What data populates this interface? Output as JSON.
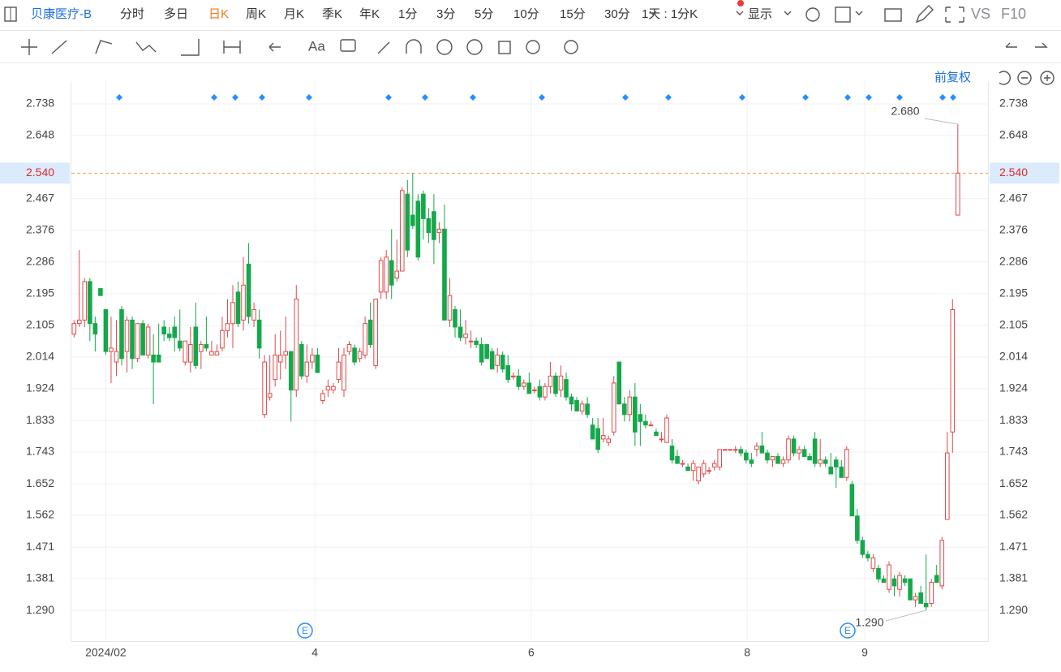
{
  "toolbar": {
    "stock": "贝康医疗-B",
    "periods": [
      "分时",
      "多日",
      "日K",
      "周K",
      "月K",
      "季K",
      "年K",
      "1分",
      "3分",
      "5分",
      "10分",
      "15分",
      "30分"
    ],
    "interval": "1天 : 1分K",
    "display": "显示",
    "vs": "VS",
    "f10": "F10",
    "font_tool": "Aa"
  },
  "chart_data": {
    "type": "candlestick",
    "adjust": "前复权",
    "up_color": "#e0494b",
    "down_color": "#14a84a",
    "grid": true,
    "ylim": [
      1.202,
      2.803
    ],
    "yticks": [
      2.738,
      2.648,
      2.467,
      2.376,
      2.286,
      2.195,
      2.105,
      2.014,
      1.924,
      1.833,
      1.743,
      1.652,
      1.562,
      1.471,
      1.381,
      {
        "value": 1.29,
        "label": "1.290"
      }
    ],
    "xlim": [
      -0.5,
      172.7
    ],
    "xticks": [
      {
        "value": 6,
        "label": "2024/02"
      },
      {
        "value": 45.5,
        "label": "4"
      },
      {
        "value": 86.4,
        "label": "6"
      },
      {
        "value": 127.2,
        "label": "8"
      },
      {
        "value": 149.4,
        "label": "9"
      }
    ],
    "last_price": {
      "value": 2.54,
      "label": "2.540"
    },
    "high_label": {
      "value": 2.68,
      "label": "2.680"
    },
    "low_label": {
      "value": 1.29,
      "label": "1.290"
    },
    "event_labels": [
      "E",
      "E"
    ],
    "ohlc": [
      [
        2.08,
        2.12,
        2.07,
        2.11
      ],
      [
        2.11,
        2.32,
        2.1,
        2.12
      ],
      [
        2.12,
        2.24,
        2.1,
        2.23
      ],
      [
        2.23,
        2.24,
        2.06,
        2.11
      ],
      [
        2.11,
        2.13,
        2.03,
        2.08
      ],
      [
        2.21,
        2.21,
        2.19,
        2.19
      ],
      [
        2.15,
        2.15,
        2.02,
        2.03
      ],
      [
        2.03,
        2.13,
        1.94,
        2.04
      ],
      [
        2.0,
        2.12,
        1.96,
        2.03
      ],
      [
        2.15,
        2.16,
        1.99,
        2.01
      ],
      [
        2.03,
        2.13,
        1.97,
        2.12
      ],
      [
        2.12,
        2.13,
        1.98,
        2.01
      ],
      [
        2.01,
        2.11,
        2.0,
        2.11
      ],
      [
        2.11,
        2.12,
        2.02,
        2.02
      ],
      [
        2.02,
        2.11,
        2.01,
        2.1
      ],
      [
        2.02,
        2.08,
        1.88,
        2.0
      ],
      [
        2.02,
        2.11,
        2.0,
        2.0
      ],
      [
        2.1,
        2.12,
        2.06,
        2.08
      ],
      [
        2.08,
        2.1,
        2.06,
        2.07
      ],
      [
        2.1,
        2.13,
        2.03,
        2.07
      ],
      [
        2.06,
        2.15,
        2.03,
        2.04
      ],
      [
        2.0,
        2.06,
        1.99,
        2.06
      ],
      [
        2.0,
        2.1,
        1.97,
        2.05
      ],
      [
        2.1,
        2.17,
        1.98,
        1.99
      ],
      [
        2.03,
        2.06,
        1.98,
        2.05
      ],
      [
        2.05,
        2.13,
        2.03,
        2.04
      ],
      [
        2.02,
        2.06,
        2.02,
        2.03
      ],
      [
        2.02,
        2.05,
        2.02,
        2.03
      ],
      [
        2.04,
        2.13,
        2.03,
        2.09
      ],
      [
        2.09,
        2.18,
        2.07,
        2.11
      ],
      [
        2.11,
        2.22,
        2.04,
        2.17
      ],
      [
        2.2,
        2.23,
        2.1,
        2.11
      ],
      [
        2.12,
        2.3,
        2.09,
        2.22
      ],
      [
        2.28,
        2.34,
        2.11,
        2.13
      ],
      [
        2.12,
        2.17,
        2.1,
        2.15
      ],
      [
        2.12,
        2.15,
        2.01,
        2.04
      ],
      [
        1.85,
        2.02,
        1.84,
        2.0
      ],
      [
        1.9,
        2.02,
        1.89,
        1.91
      ],
      [
        1.95,
        2.08,
        1.93,
        2.02
      ],
      [
        2.0,
        2.09,
        1.95,
        2.02
      ],
      [
        2.02,
        2.13,
        1.98,
        2.03
      ],
      [
        2.03,
        2.03,
        1.83,
        1.92
      ],
      [
        1.92,
        2.22,
        1.9,
        2.18
      ],
      [
        2.05,
        2.06,
        1.95,
        1.96
      ],
      [
        1.96,
        2.05,
        1.94,
        2.0
      ],
      [
        2.0,
        2.04,
        1.98,
        2.02
      ],
      [
        2.02,
        2.04,
        1.97,
        1.97
      ],
      [
        1.89,
        1.92,
        1.88,
        1.91
      ],
      [
        1.92,
        1.95,
        1.9,
        1.93
      ],
      [
        1.92,
        1.94,
        1.91,
        1.93
      ],
      [
        1.95,
        2.04,
        1.94,
        2.0
      ],
      [
        1.92,
        2.04,
        1.9,
        2.02
      ],
      [
        2.03,
        2.06,
        2.02,
        2.05
      ],
      [
        2.04,
        2.05,
        1.99,
        2.0
      ],
      [
        2.01,
        2.04,
        2.0,
        2.03
      ],
      [
        2.02,
        2.13,
        2.01,
        2.11
      ],
      [
        2.12,
        2.17,
        2.04,
        2.05
      ],
      [
        1.99,
        2.18,
        1.98,
        2.18
      ],
      [
        2.2,
        2.3,
        2.18,
        2.29
      ],
      [
        2.2,
        2.32,
        2.18,
        2.3
      ],
      [
        2.29,
        2.38,
        2.18,
        2.22
      ],
      [
        2.24,
        2.35,
        2.23,
        2.26
      ],
      [
        2.26,
        2.5,
        2.26,
        2.49
      ],
      [
        2.48,
        2.52,
        2.3,
        2.32
      ],
      [
        2.42,
        2.54,
        2.38,
        2.39
      ],
      [
        2.46,
        2.48,
        2.29,
        2.3
      ],
      [
        2.48,
        2.49,
        2.35,
        2.41
      ],
      [
        2.41,
        2.44,
        2.34,
        2.37
      ],
      [
        2.43,
        2.48,
        2.28,
        2.35
      ],
      [
        2.37,
        2.4,
        2.34,
        2.38
      ],
      [
        2.38,
        2.45,
        2.12,
        2.12
      ],
      [
        2.12,
        2.24,
        2.1,
        2.19
      ],
      [
        2.15,
        2.16,
        2.07,
        2.1
      ],
      [
        2.1,
        2.15,
        2.06,
        2.07
      ],
      [
        2.07,
        2.12,
        2.05,
        2.08
      ],
      [
        2.06,
        2.09,
        2.04,
        2.06
      ],
      [
        2.06,
        2.07,
        2.04,
        2.05
      ],
      [
        2.05,
        2.07,
        1.99,
        2.0
      ],
      [
        2.05,
        2.05,
        2.01,
        2.01
      ],
      [
        2.03,
        2.04,
        1.98,
        1.98
      ],
      [
        1.99,
        2.04,
        1.97,
        2.02
      ],
      [
        2.02,
        2.03,
        1.97,
        1.98
      ],
      [
        1.99,
        2.02,
        1.94,
        1.95
      ],
      [
        1.96,
        1.97,
        1.95,
        1.96
      ],
      [
        1.96,
        1.98,
        1.92,
        1.93
      ],
      [
        1.93,
        1.95,
        1.92,
        1.94
      ],
      [
        1.94,
        1.97,
        1.91,
        1.91
      ],
      [
        1.92,
        1.93,
        1.91,
        1.92
      ],
      [
        1.93,
        1.95,
        1.89,
        1.9
      ],
      [
        1.9,
        1.94,
        1.89,
        1.93
      ],
      [
        1.93,
        2.0,
        1.91,
        1.96
      ],
      [
        1.96,
        1.97,
        1.9,
        1.91
      ],
      [
        1.92,
        1.99,
        1.9,
        1.96
      ],
      [
        1.95,
        1.97,
        1.89,
        1.9
      ],
      [
        1.9,
        1.91,
        1.86,
        1.88
      ],
      [
        1.89,
        1.9,
        1.86,
        1.86
      ],
      [
        1.86,
        1.89,
        1.85,
        1.88
      ],
      [
        1.88,
        1.9,
        1.84,
        1.85
      ],
      [
        1.82,
        1.84,
        1.78,
        1.78
      ],
      [
        1.81,
        1.84,
        1.74,
        1.75
      ],
      [
        1.78,
        1.84,
        1.77,
        1.79
      ],
      [
        1.77,
        1.79,
        1.76,
        1.78
      ],
      [
        1.8,
        1.96,
        1.79,
        1.94
      ],
      [
        2.0,
        2.0,
        1.88,
        1.88
      ],
      [
        1.88,
        1.9,
        1.83,
        1.85
      ],
      [
        1.85,
        1.92,
        1.83,
        1.9
      ],
      [
        1.9,
        1.94,
        1.76,
        1.8
      ],
      [
        1.85,
        1.88,
        1.76,
        1.83
      ],
      [
        1.83,
        1.85,
        1.81,
        1.82
      ],
      [
        1.82,
        1.83,
        1.82,
        1.82
      ],
      [
        1.8,
        1.81,
        1.79,
        1.79
      ],
      [
        1.78,
        1.8,
        1.77,
        1.78
      ],
      [
        1.77,
        1.85,
        1.77,
        1.84
      ],
      [
        1.76,
        1.78,
        1.71,
        1.72
      ],
      [
        1.73,
        1.75,
        1.71,
        1.71
      ],
      [
        1.71,
        1.72,
        1.7,
        1.71
      ],
      [
        1.7,
        1.71,
        1.69,
        1.69
      ],
      [
        1.69,
        1.72,
        1.66,
        1.71
      ],
      [
        1.66,
        1.7,
        1.65,
        1.7
      ],
      [
        1.68,
        1.72,
        1.67,
        1.71
      ],
      [
        1.69,
        1.7,
        1.68,
        1.69
      ],
      [
        1.7,
        1.72,
        1.69,
        1.71
      ],
      [
        1.7,
        1.75,
        1.69,
        1.75
      ],
      [
        1.75,
        1.75,
        1.75,
        1.75
      ],
      [
        1.75,
        1.75,
        1.75,
        1.75
      ],
      [
        1.75,
        1.76,
        1.74,
        1.75
      ],
      [
        1.75,
        1.76,
        1.73,
        1.74
      ],
      [
        1.74,
        1.75,
        1.71,
        1.72
      ],
      [
        1.72,
        1.74,
        1.7,
        1.71
      ],
      [
        1.75,
        1.77,
        1.73,
        1.76
      ],
      [
        1.76,
        1.8,
        1.74,
        1.74
      ],
      [
        1.74,
        1.75,
        1.71,
        1.72
      ],
      [
        1.72,
        1.73,
        1.7,
        1.73
      ],
      [
        1.73,
        1.74,
        1.71,
        1.71
      ],
      [
        1.71,
        1.73,
        1.7,
        1.72
      ],
      [
        1.72,
        1.79,
        1.71,
        1.78
      ],
      [
        1.78,
        1.79,
        1.73,
        1.74
      ],
      [
        1.74,
        1.76,
        1.72,
        1.75
      ],
      [
        1.75,
        1.76,
        1.73,
        1.73
      ],
      [
        1.73,
        1.74,
        1.72,
        1.72
      ],
      [
        1.78,
        1.8,
        1.7,
        1.71
      ],
      [
        1.71,
        1.78,
        1.7,
        1.72
      ],
      [
        1.72,
        1.73,
        1.7,
        1.71
      ],
      [
        1.7,
        1.74,
        1.68,
        1.68
      ],
      [
        1.72,
        1.73,
        1.64,
        1.7
      ],
      [
        1.7,
        1.72,
        1.67,
        1.67
      ],
      [
        1.67,
        1.76,
        1.66,
        1.75
      ],
      [
        1.65,
        1.66,
        1.56,
        1.56
      ],
      [
        1.56,
        1.58,
        1.48,
        1.49
      ],
      [
        1.49,
        1.5,
        1.44,
        1.45
      ],
      [
        1.45,
        1.46,
        1.43,
        1.44
      ],
      [
        1.41,
        1.45,
        1.4,
        1.44
      ],
      [
        1.41,
        1.42,
        1.37,
        1.38
      ],
      [
        1.38,
        1.39,
        1.37,
        1.37
      ],
      [
        1.35,
        1.43,
        1.34,
        1.42
      ],
      [
        1.38,
        1.39,
        1.33,
        1.36
      ],
      [
        1.35,
        1.4,
        1.33,
        1.39
      ],
      [
        1.38,
        1.39,
        1.36,
        1.37
      ],
      [
        1.38,
        1.38,
        1.32,
        1.32
      ],
      [
        1.32,
        1.34,
        1.3,
        1.33
      ],
      [
        1.34,
        1.36,
        1.31,
        1.31
      ],
      [
        1.31,
        1.45,
        1.29,
        1.3
      ],
      [
        1.31,
        1.38,
        1.3,
        1.37
      ],
      [
        1.39,
        1.42,
        1.37,
        1.37
      ],
      [
        1.36,
        1.5,
        1.35,
        1.49
      ],
      [
        1.55,
        1.8,
        1.55,
        1.74
      ],
      [
        1.8,
        2.18,
        1.74,
        2.15
      ],
      [
        2.42,
        2.68,
        2.42,
        2.54
      ]
    ]
  }
}
